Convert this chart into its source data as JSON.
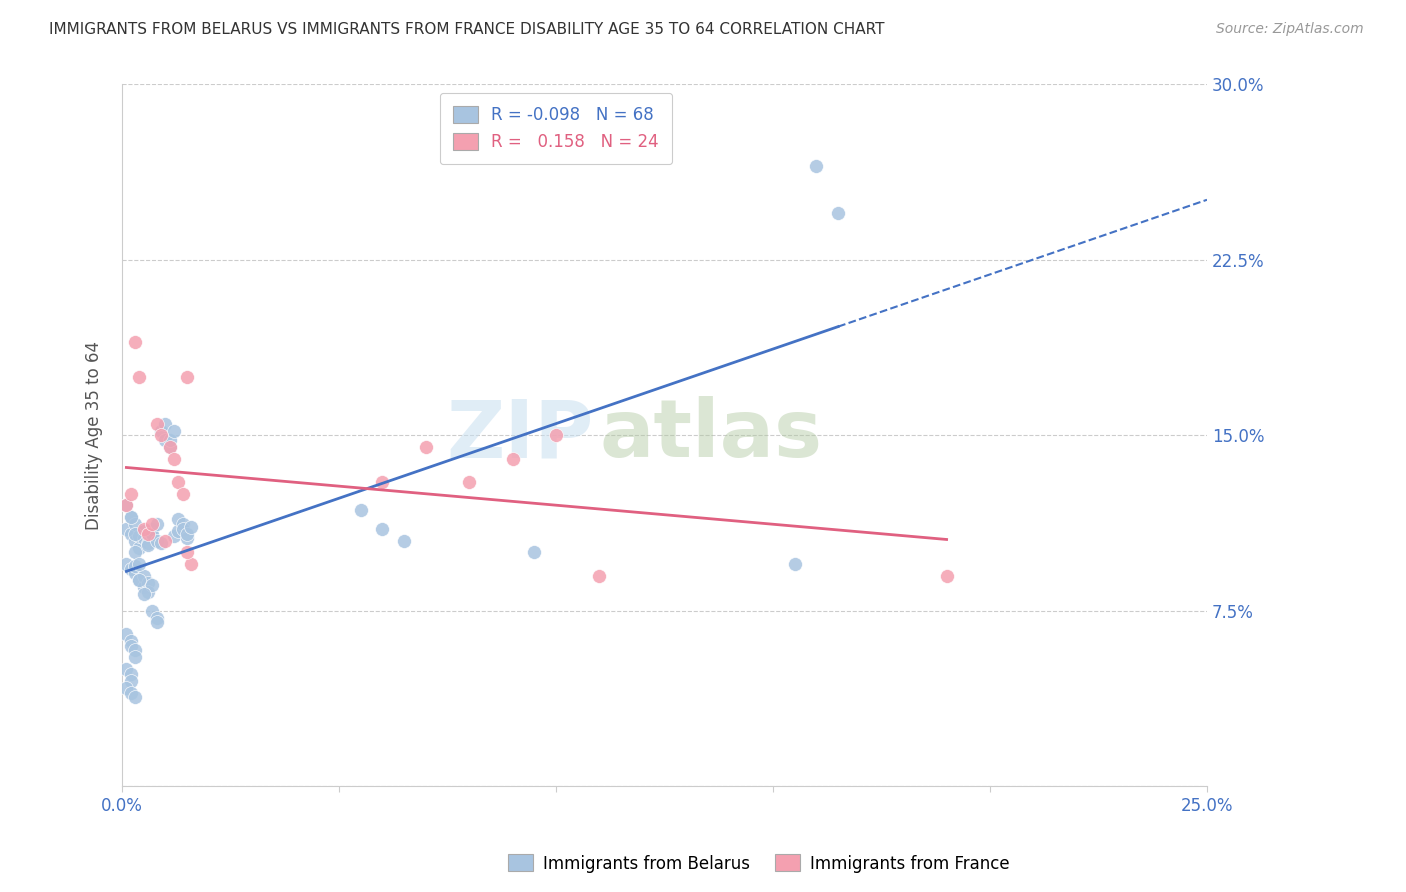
{
  "title": "IMMIGRANTS FROM BELARUS VS IMMIGRANTS FROM FRANCE DISABILITY AGE 35 TO 64 CORRELATION CHART",
  "source": "Source: ZipAtlas.com",
  "ylabel": "Disability Age 35 to 64",
  "xlim": [
    0.0,
    0.25
  ],
  "ylim": [
    0.0,
    0.3
  ],
  "xticks": [
    0.0,
    0.05,
    0.1,
    0.15,
    0.2,
    0.25
  ],
  "yticks": [
    0.0,
    0.075,
    0.15,
    0.225,
    0.3
  ],
  "r_belarus": -0.098,
  "n_belarus": 68,
  "r_france": 0.158,
  "n_france": 24,
  "color_belarus": "#a8c4e0",
  "color_france": "#f4a0b0",
  "color_line_belarus": "#4472c4",
  "color_line_france": "#e06080",
  "watermark_zip": "ZIP",
  "watermark_atlas": "atlas",
  "belarus_x": [
    0.001,
    0.002,
    0.002,
    0.003,
    0.003,
    0.004,
    0.004,
    0.005,
    0.005,
    0.006,
    0.006,
    0.007,
    0.007,
    0.008,
    0.008,
    0.009,
    0.009,
    0.01,
    0.01,
    0.011,
    0.011,
    0.012,
    0.012,
    0.013,
    0.013,
    0.014,
    0.014,
    0.015,
    0.015,
    0.016,
    0.001,
    0.002,
    0.003,
    0.003,
    0.004,
    0.005,
    0.005,
    0.006,
    0.006,
    0.007,
    0.007,
    0.008,
    0.008,
    0.001,
    0.002,
    0.002,
    0.003,
    0.003,
    0.001,
    0.002,
    0.002,
    0.001,
    0.002,
    0.003,
    0.055,
    0.06,
    0.065,
    0.001,
    0.002,
    0.003,
    0.003,
    0.004,
    0.004,
    0.005,
    0.095,
    0.155,
    0.16,
    0.165
  ],
  "belarus_y": [
    0.11,
    0.115,
    0.108,
    0.112,
    0.105,
    0.102,
    0.107,
    0.109,
    0.106,
    0.104,
    0.103,
    0.11,
    0.108,
    0.105,
    0.112,
    0.104,
    0.152,
    0.148,
    0.155,
    0.145,
    0.148,
    0.152,
    0.107,
    0.109,
    0.114,
    0.112,
    0.11,
    0.106,
    0.108,
    0.111,
    0.095,
    0.093,
    0.091,
    0.094,
    0.088,
    0.085,
    0.09,
    0.087,
    0.083,
    0.086,
    0.075,
    0.072,
    0.07,
    0.065,
    0.062,
    0.06,
    0.058,
    0.055,
    0.05,
    0.048,
    0.045,
    0.042,
    0.04,
    0.038,
    0.118,
    0.11,
    0.105,
    0.12,
    0.115,
    0.108,
    0.1,
    0.095,
    0.088,
    0.082,
    0.1,
    0.095,
    0.265,
    0.245
  ],
  "france_x": [
    0.001,
    0.002,
    0.003,
    0.004,
    0.005,
    0.006,
    0.007,
    0.008,
    0.009,
    0.01,
    0.011,
    0.012,
    0.013,
    0.014,
    0.015,
    0.016,
    0.06,
    0.07,
    0.08,
    0.09,
    0.1,
    0.11,
    0.19,
    0.015
  ],
  "france_y": [
    0.12,
    0.125,
    0.19,
    0.175,
    0.11,
    0.108,
    0.112,
    0.155,
    0.15,
    0.105,
    0.145,
    0.14,
    0.13,
    0.125,
    0.175,
    0.095,
    0.13,
    0.145,
    0.13,
    0.14,
    0.15,
    0.09,
    0.09,
    0.1
  ]
}
